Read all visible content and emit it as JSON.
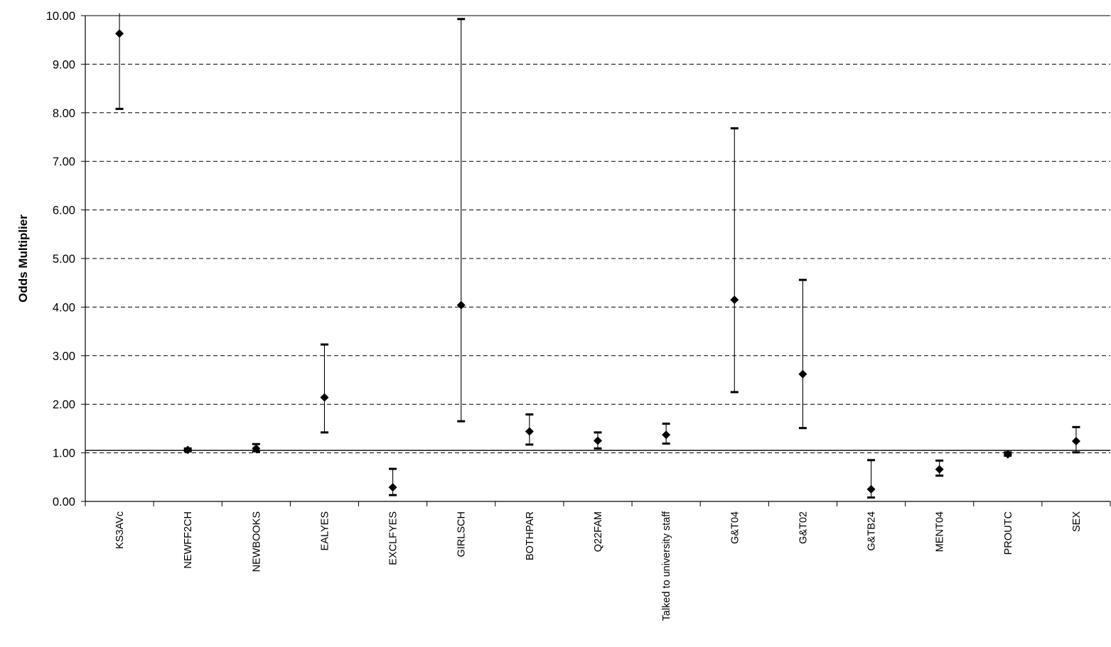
{
  "chart_data": {
    "type": "scatter",
    "subtype": "error-bar",
    "title": "",
    "xlabel": "",
    "ylabel": "Odds Multiplier",
    "ylim": [
      0,
      10
    ],
    "yticks": [
      "0.00",
      "1.00",
      "2.00",
      "3.00",
      "4.00",
      "5.00",
      "6.00",
      "7.00",
      "8.00",
      "9.00",
      "10.00"
    ],
    "grid": "horizontal dashed",
    "reference_line": 1.05,
    "marker": "diamond",
    "colors": {
      "marker": "#000000",
      "gridline": "#000000",
      "background": "#ffffff"
    },
    "categories": [
      "KS3AVc",
      "NEWFF2CH",
      "NEWBOOKS",
      "EALYES",
      "EXCLFYES",
      "GIRLSCH",
      "BOTHPAR",
      "Q22FAM",
      "Talked to university staff",
      "G&T04",
      "G&T02",
      "G&TB24",
      "MENT04",
      "PROUTC",
      "SEX"
    ],
    "values": [
      9.63,
      1.06,
      1.09,
      2.14,
      0.29,
      4.04,
      1.44,
      1.25,
      1.37,
      4.15,
      2.62,
      0.25,
      0.66,
      0.97,
      1.24
    ],
    "lower": [
      8.08,
      1.03,
      1.03,
      1.42,
      0.13,
      1.65,
      1.17,
      1.09,
      1.19,
      2.25,
      1.51,
      0.08,
      0.53,
      0.94,
      1.01
    ],
    "upper": [
      10.05,
      1.09,
      1.18,
      3.23,
      0.67,
      9.93,
      1.79,
      1.42,
      1.6,
      7.68,
      4.56,
      0.85,
      0.84,
      1.01,
      1.53
    ],
    "upper_capped": [
      false,
      true,
      true,
      true,
      true,
      true,
      true,
      true,
      true,
      true,
      true,
      true,
      true,
      true,
      true
    ]
  }
}
